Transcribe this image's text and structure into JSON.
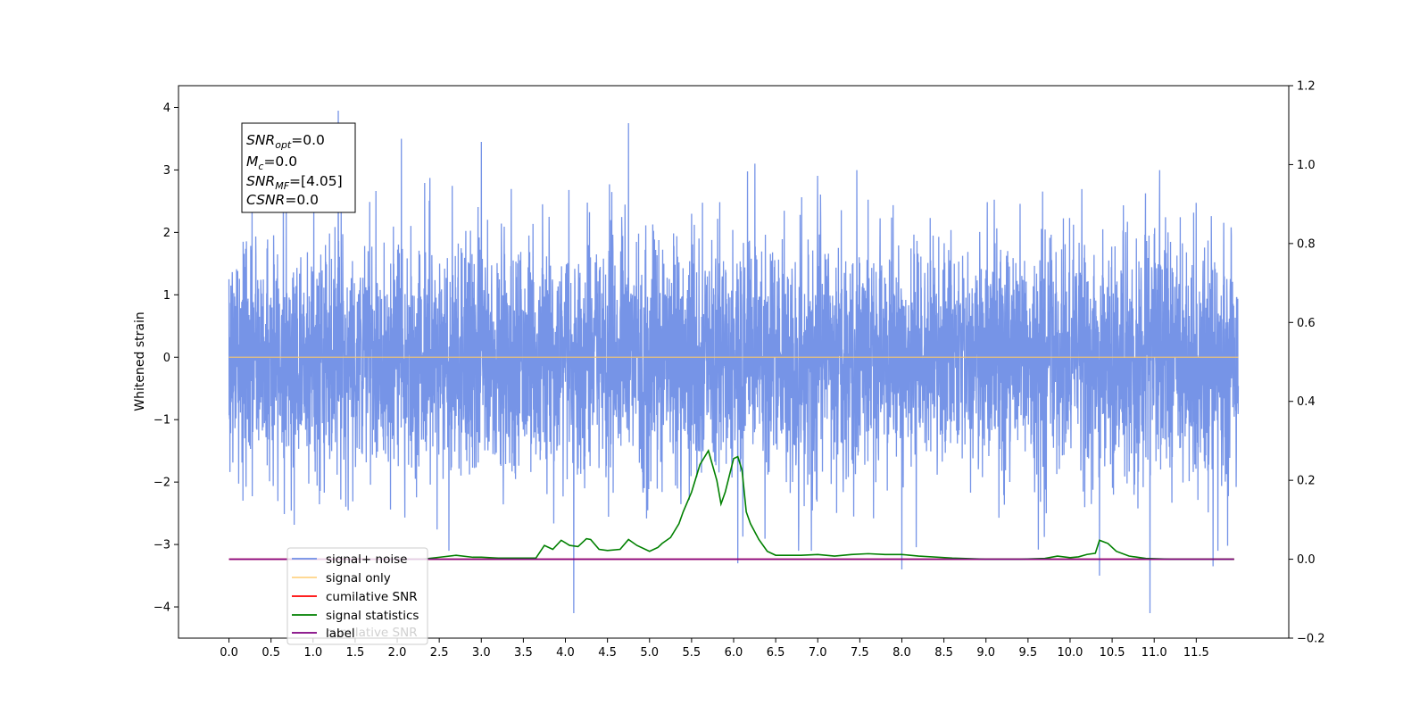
{
  "chart_data": {
    "type": "line",
    "ylabel": "Whitened strain",
    "xlim": [
      -0.6,
      12.6
    ],
    "ylim": [
      -4.5,
      4.35
    ],
    "ylim_right": [
      -0.2,
      1.2
    ],
    "x_ticks": [
      0.0,
      0.5,
      1.0,
      1.5,
      2.0,
      2.5,
      3.0,
      3.5,
      4.0,
      4.5,
      5.0,
      5.5,
      6.0,
      6.5,
      7.0,
      7.5,
      8.0,
      8.5,
      9.0,
      9.5,
      10.0,
      10.5,
      11.0,
      11.5
    ],
    "x_tick_labels": [
      "0.0",
      "0.5",
      "1.0",
      "1.5",
      "2.0",
      "2.5",
      "3.0",
      "3.5",
      "4.0",
      "4.5",
      "5.0",
      "5.5",
      "6.0",
      "6.5",
      "7.0",
      "7.5",
      "8.0",
      "8.5",
      "9.0",
      "9.5",
      "10.0",
      "10.5",
      "11.0",
      "11.5"
    ],
    "y_ticks": [
      -4,
      -3,
      -2,
      -1,
      0,
      1,
      2,
      3,
      4
    ],
    "y_tick_labels": [
      "−4",
      "−3",
      "−2",
      "−1",
      "0",
      "1",
      "2",
      "3",
      "4"
    ],
    "y_right_ticks": [
      -0.2,
      0.0,
      0.2,
      0.4,
      0.6,
      0.8,
      1.0,
      1.2
    ],
    "y_right_tick_labels": [
      "−0.2",
      "0.0",
      "0.2",
      "0.4",
      "0.6",
      "0.8",
      "1.0",
      "1.2"
    ],
    "series": [
      {
        "name": "signal+ noise",
        "color": "#6f8ee6",
        "axis": "left",
        "x_range": [
          0.0,
          12.0
        ],
        "typical_range": [
          -1.6,
          1.6
        ],
        "peaks": [
          [
            0.0,
            1.25
          ],
          [
            1.3,
            3.95
          ],
          [
            4.75,
            3.75
          ],
          [
            2.05,
            3.5
          ],
          [
            3.0,
            3.45
          ],
          [
            6.05,
            -3.3
          ],
          [
            4.1,
            -4.1
          ],
          [
            10.35,
            -3.5
          ],
          [
            10.95,
            -4.1
          ],
          [
            11.7,
            -3.35
          ],
          [
            8.0,
            -3.4
          ]
        ]
      },
      {
        "name": "signal only",
        "color": "#ffc966",
        "axis": "left",
        "x": [
          0.0,
          12.0
        ],
        "y": [
          0.0,
          0.0
        ]
      },
      {
        "name": "cumilative SNR",
        "color": "#ff0000",
        "axis": "right",
        "x": [
          0.0,
          11.95
        ],
        "y": [
          0.0,
          0.0
        ]
      },
      {
        "name": "signal statistics",
        "color": "#008000",
        "axis": "right",
        "x": [
          1.8,
          2.0,
          2.3,
          2.5,
          2.7,
          2.9,
          3.0,
          3.2,
          3.5,
          3.65,
          3.75,
          3.85,
          3.95,
          4.05,
          4.15,
          4.25,
          4.3,
          4.4,
          4.5,
          4.65,
          4.75,
          4.85,
          5.0,
          5.1,
          5.15,
          5.25,
          5.35,
          5.4,
          5.5,
          5.6,
          5.7,
          5.8,
          5.85,
          5.9,
          6.0,
          6.05,
          6.1,
          6.15,
          6.2,
          6.3,
          6.4,
          6.5,
          6.6,
          6.8,
          7.0,
          7.2,
          7.4,
          7.6,
          7.8,
          8.0,
          8.2,
          8.6,
          9.0,
          9.4,
          9.7,
          9.85,
          10.0,
          10.1,
          10.2,
          10.3,
          10.35,
          10.45,
          10.55,
          10.7,
          10.9,
          11.2,
          11.5,
          11.95
        ],
        "y": [
          0.0,
          0.0,
          0.0,
          0.005,
          0.01,
          0.005,
          0.005,
          0.003,
          0.003,
          0.003,
          0.035,
          0.025,
          0.048,
          0.035,
          0.032,
          0.052,
          0.05,
          0.025,
          0.022,
          0.025,
          0.05,
          0.035,
          0.02,
          0.03,
          0.04,
          0.055,
          0.09,
          0.12,
          0.17,
          0.24,
          0.275,
          0.2,
          0.14,
          0.17,
          0.255,
          0.26,
          0.225,
          0.12,
          0.09,
          0.05,
          0.02,
          0.01,
          0.01,
          0.01,
          0.012,
          0.008,
          0.012,
          0.014,
          0.012,
          0.012,
          0.008,
          0.003,
          0.0,
          0.0,
          0.002,
          0.008,
          0.004,
          0.006,
          0.012,
          0.015,
          0.048,
          0.04,
          0.02,
          0.008,
          0.002,
          0.0,
          0.0,
          0.0
        ]
      },
      {
        "name": "label",
        "color": "#800080",
        "axis": "right",
        "x": [
          0.0,
          11.95
        ],
        "y": [
          0.0,
          0.0
        ]
      }
    ],
    "legend_entries": [
      "signal+ noise",
      "signal only",
      "cumilative SNR",
      "signal statistics",
      "label"
    ],
    "legend_hidden_text": "cumilative SNR",
    "legend_position": "lower-left",
    "annotation": {
      "lines": [
        {
          "sym": "SNR",
          "sub": "opt",
          "val": "=0.0"
        },
        {
          "sym": "M",
          "sub": "c",
          "val": "=0.0"
        },
        {
          "sym": "SNR",
          "sub": "MF",
          "val": "=[4.05]"
        },
        {
          "sym": "CSNR",
          "sub": "",
          "val": "=0.0"
        }
      ]
    },
    "grid": false
  }
}
